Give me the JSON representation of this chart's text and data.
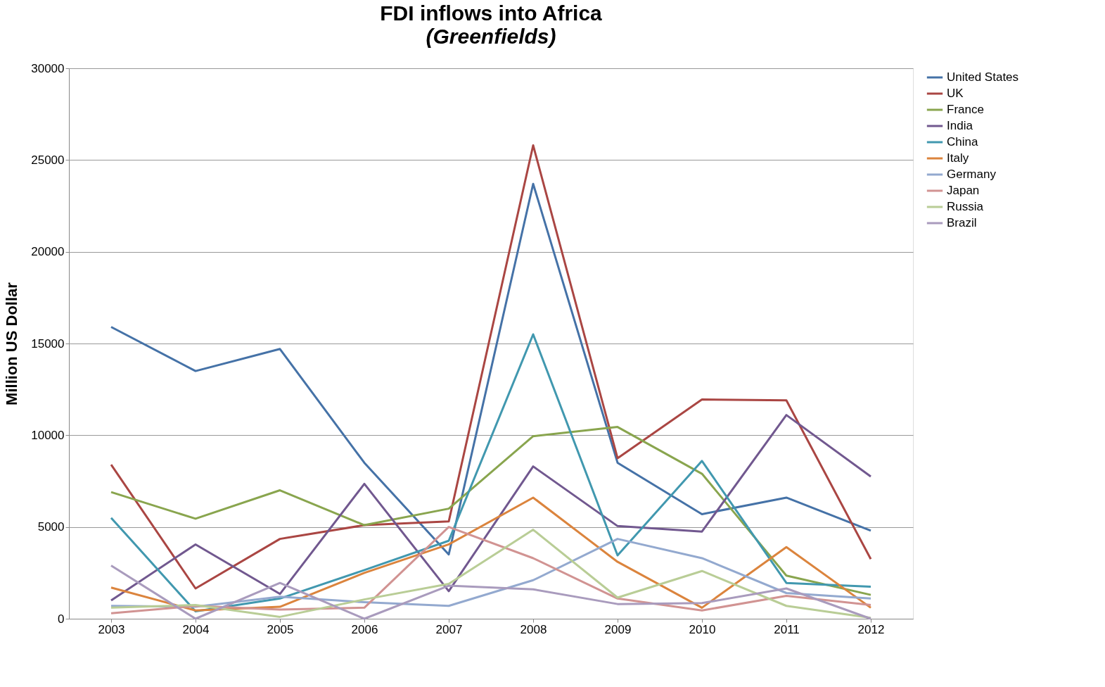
{
  "chart_data": {
    "type": "line",
    "title": "FDI inflows into Africa",
    "subtitle": "(Greenfields)",
    "ylabel": "Million US Dollar",
    "categories": [
      "2003",
      "2004",
      "2005",
      "2006",
      "2007",
      "2008",
      "2009",
      "2010",
      "2011",
      "2012"
    ],
    "ylim": [
      0,
      30000
    ],
    "yticks": [
      0,
      5000,
      10000,
      15000,
      20000,
      25000,
      30000
    ],
    "grid": "y",
    "legend": "right",
    "marker": "none",
    "line_style": "solid",
    "series": [
      {
        "name": "United States",
        "color": "#4572a7",
        "values": [
          15900,
          13500,
          14700,
          8500,
          3500,
          23700,
          8500,
          5700,
          6600,
          4800
        ]
      },
      {
        "name": "UK",
        "color": "#aa4643",
        "values": [
          8400,
          1650,
          4350,
          5100,
          5300,
          25800,
          8750,
          11950,
          11900,
          3250
        ]
      },
      {
        "name": "France",
        "color": "#89a54e",
        "values": [
          6900,
          5450,
          7000,
          5100,
          6000,
          9950,
          10450,
          7900,
          2350,
          1300
        ]
      },
      {
        "name": "India",
        "color": "#71588f",
        "values": [
          1000,
          4050,
          1350,
          7350,
          1500,
          8300,
          5050,
          4750,
          11100,
          7750
        ]
      },
      {
        "name": "China",
        "color": "#4198af",
        "values": [
          5500,
          400,
          1100,
          2650,
          4250,
          15500,
          3450,
          8600,
          1950,
          1750
        ]
      },
      {
        "name": "Italy",
        "color": "#db843d",
        "values": [
          1700,
          450,
          650,
          2500,
          4050,
          6600,
          3100,
          600,
          3900,
          600
        ]
      },
      {
        "name": "Germany",
        "color": "#93a9cf",
        "values": [
          700,
          650,
          1200,
          900,
          700,
          2100,
          4350,
          3300,
          1400,
          1100
        ]
      },
      {
        "name": "Japan",
        "color": "#d19392",
        "values": [
          300,
          700,
          500,
          600,
          5000,
          3300,
          1100,
          450,
          1250,
          750
        ]
      },
      {
        "name": "Russia",
        "color": "#b9cd96",
        "values": [
          600,
          750,
          100,
          1050,
          1900,
          4850,
          1150,
          2600,
          700,
          50
        ]
      },
      {
        "name": "Brazil",
        "color": "#a99bbd",
        "values": [
          2900,
          0,
          1950,
          0,
          1800,
          1600,
          800,
          850,
          1650,
          0
        ]
      }
    ]
  }
}
